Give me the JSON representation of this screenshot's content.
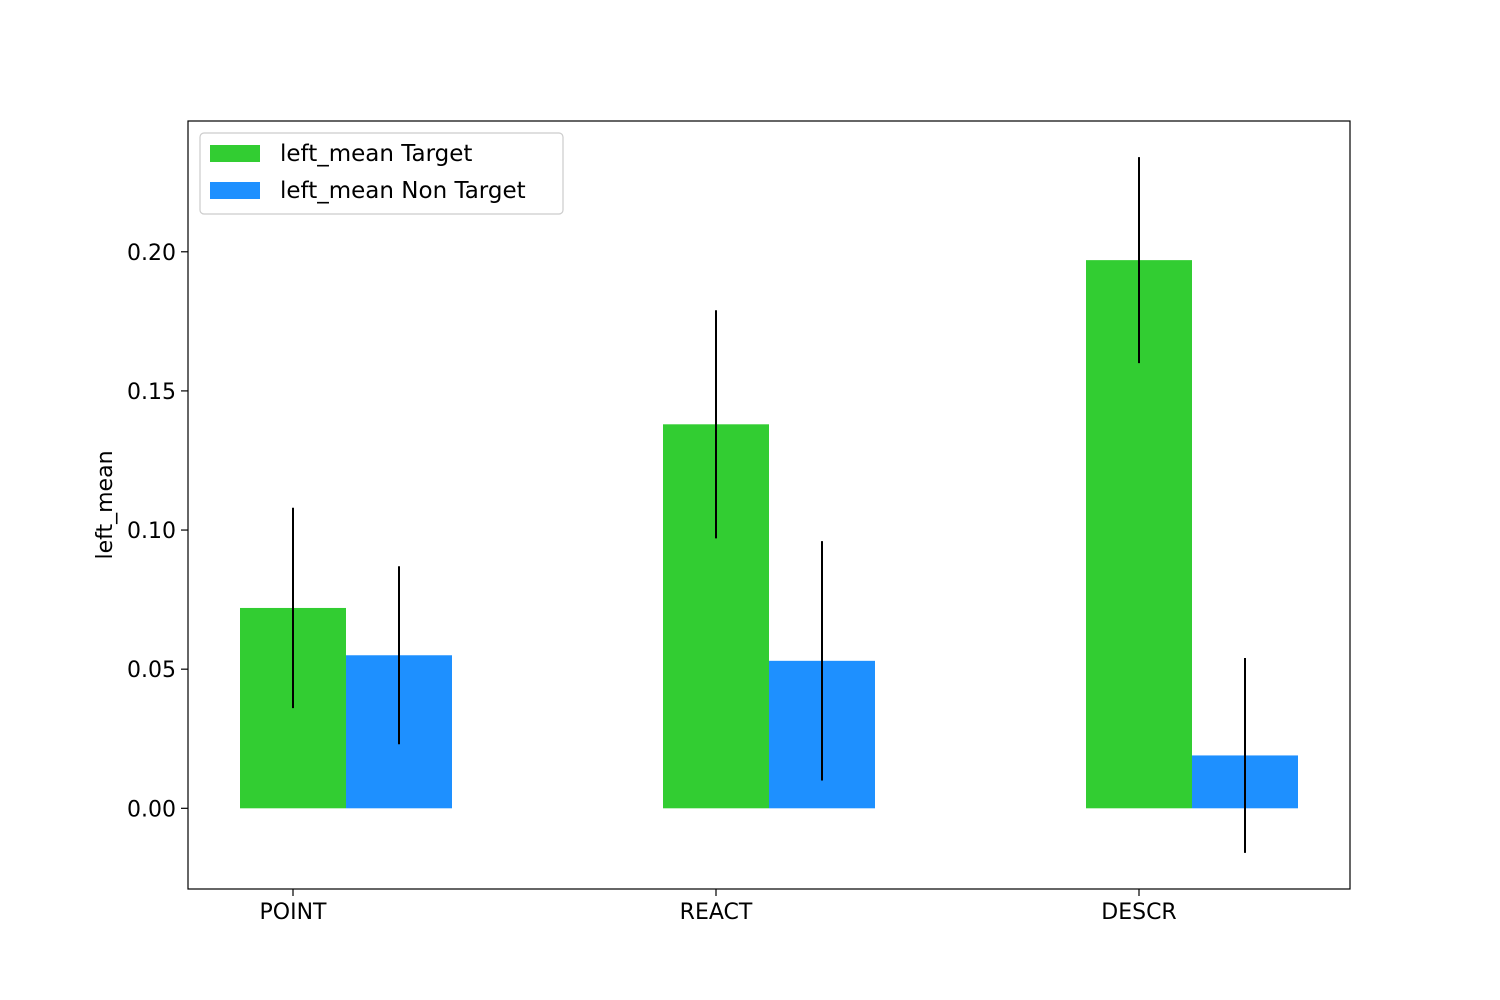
{
  "chart_data": {
    "type": "bar",
    "title": "",
    "xlabel": "",
    "ylabel": "left_mean",
    "categories": [
      "POINT",
      "REACT",
      "DESCR"
    ],
    "series": [
      {
        "name": "left_mean Target",
        "color": "#32cd32",
        "values": [
          0.072,
          0.138,
          0.197
        ],
        "errors": [
          0.036,
          0.041,
          0.037
        ]
      },
      {
        "name": "left_mean Non Target",
        "color": "#1e90ff",
        "values": [
          0.055,
          0.053,
          0.019
        ],
        "errors": [
          0.032,
          0.043,
          0.035
        ]
      }
    ],
    "ylim": [
      -0.029,
      0.247
    ],
    "yticks": [
      0.0,
      0.05,
      0.1,
      0.15,
      0.2
    ],
    "ytick_labels": [
      "0.00",
      "0.05",
      "0.10",
      "0.15",
      "0.20"
    ],
    "grid": false,
    "legend_position": "upper-left",
    "error_bar_color": "#000000"
  }
}
